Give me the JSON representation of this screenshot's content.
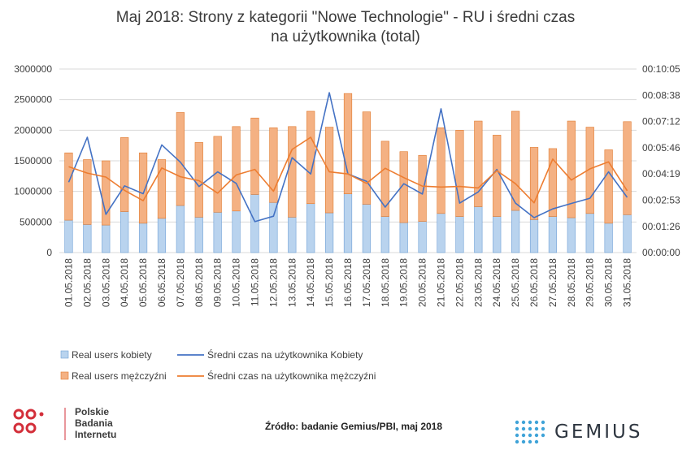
{
  "title_line1": "Maj 2018: Strony z kategorii \"Nowe Technologie\" - RU i średni czas",
  "title_line2": "na użytkownika (total)",
  "colors": {
    "female_bar": "#b9d3ee",
    "female_bar_stroke": "#6fa0d6",
    "male_bar": "#f4b183",
    "male_bar_stroke": "#e07b30",
    "female_line": "#4472c4",
    "male_line": "#ed7d31",
    "grid": "#d9d9d9",
    "logo_red": "#d32f3a",
    "gemius_dots": "#3fa3d8"
  },
  "chart_data": {
    "type": "bar",
    "stacked": true,
    "categories": [
      "01.05.2018",
      "02.05.2018",
      "03.05.2018",
      "04.05.2018",
      "05.05.2018",
      "06.05.2018",
      "07.05.2018",
      "08.05.2018",
      "09.05.2018",
      "10.05.2018",
      "11.05.2018",
      "12.05.2018",
      "13.05.2018",
      "14.05.2018",
      "15.05.2018",
      "16.05.2018",
      "17.05.2018",
      "18.05.2018",
      "19.05.2018",
      "20.05.2018",
      "21.05.2018",
      "22.05.2018",
      "23.05.2018",
      "24.05.2018",
      "25.05.2018",
      "26.05.2018",
      "27.05.2018",
      "28.05.2018",
      "29.05.2018",
      "30.05.2018",
      "31.05.2018"
    ],
    "series": [
      {
        "name": "Real users kobiety",
        "kind": "bar",
        "axis": "left",
        "values": [
          530000,
          460000,
          450000,
          670000,
          480000,
          560000,
          770000,
          580000,
          660000,
          680000,
          950000,
          820000,
          580000,
          800000,
          650000,
          960000,
          790000,
          590000,
          490000,
          510000,
          640000,
          590000,
          750000,
          590000,
          690000,
          540000,
          590000,
          570000,
          640000,
          480000,
          620000
        ]
      },
      {
        "name": "Real users mężczyźni",
        "kind": "bar",
        "axis": "left",
        "values": [
          1100000,
          1060000,
          1050000,
          1210000,
          1150000,
          960000,
          1520000,
          1220000,
          1240000,
          1380000,
          1250000,
          1220000,
          1480000,
          1510000,
          1400000,
          1640000,
          1510000,
          1230000,
          1160000,
          1080000,
          1400000,
          1410000,
          1400000,
          1330000,
          1620000,
          1180000,
          1110000,
          1580000,
          1410000,
          1200000,
          1520000
        ]
      },
      {
        "name": "Średni czas na użytkownika Kobiety",
        "kind": "line",
        "axis": "right",
        "values": [
          "00:03:52",
          "00:06:20",
          "00:02:06",
          "00:03:40",
          "00:03:14",
          "00:05:55",
          "00:04:58",
          "00:03:38",
          "00:04:26",
          "00:03:48",
          "00:01:42",
          "00:02:00",
          "00:05:13",
          "00:04:19",
          "00:08:47",
          "00:04:19",
          "00:03:55",
          "00:02:30",
          "00:03:47",
          "00:03:13",
          "00:07:54",
          "00:02:43",
          "00:03:20",
          "00:04:34",
          "00:02:43",
          "00:01:55",
          "00:02:24",
          "00:02:42",
          "00:02:59",
          "00:04:26",
          "00:03:02"
        ]
      },
      {
        "name": "Średni czas na użytkownika mężczyźni",
        "kind": "line",
        "axis": "right",
        "values": [
          "00:04:43",
          "00:04:22",
          "00:04:09",
          "00:03:25",
          "00:02:51",
          "00:04:39",
          "00:04:10",
          "00:03:57",
          "00:03:16",
          "00:04:16",
          "00:04:34",
          "00:03:22",
          "00:05:40",
          "00:06:20",
          "00:04:26",
          "00:04:19",
          "00:03:48",
          "00:04:38",
          "00:04:07",
          "00:03:39",
          "00:03:36",
          "00:03:38",
          "00:03:33",
          "00:04:30",
          "00:03:47",
          "00:02:44",
          "00:05:08",
          "00:03:59",
          "00:04:36",
          "00:04:59",
          "00:03:24"
        ]
      }
    ],
    "left_axis": {
      "ticks": [
        "0",
        "500000",
        "1000000",
        "1500000",
        "2000000",
        "2500000",
        "3000000"
      ],
      "ylim": [
        0,
        3000000
      ]
    },
    "right_axis": {
      "ticks": [
        "00:00:00",
        "00:01:26",
        "00:02:53",
        "00:04:19",
        "00:05:46",
        "00:07:12",
        "00:08:38",
        "00:10:05"
      ],
      "ylim": [
        "00:00:00",
        "00:10:05"
      ]
    },
    "grid": true,
    "legend_position": "bottom",
    "legend": [
      "Real users kobiety",
      "Średni czas na użytkownika Kobiety",
      "Real users mężczyźni",
      "Średni czas na użytkownika mężczyźni"
    ]
  },
  "footer": {
    "org_line1": "Polskie",
    "org_line2": "Badania",
    "org_line3": "Internetu",
    "source": "Źródło: badanie Gemius/PBI, maj 2018",
    "gemius_word": "GEMIUS"
  }
}
